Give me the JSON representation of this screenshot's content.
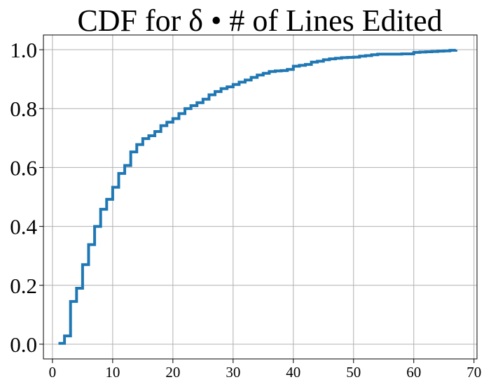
{
  "chart_data": {
    "type": "line",
    "title": "CDF for δ • # of Lines Edited",
    "xlabel": "",
    "ylabel": "",
    "xlim": [
      -1.5,
      70.5
    ],
    "ylim": [
      -0.05,
      1.05
    ],
    "grid": true,
    "x_ticks": [
      0,
      10,
      20,
      30,
      40,
      50,
      60,
      70
    ],
    "y_ticks": [
      0.0,
      0.2,
      0.4,
      0.6,
      0.8,
      1.0
    ],
    "x_tick_labels": [
      "0",
      "10",
      "20",
      "30",
      "40",
      "50",
      "60",
      "70"
    ],
    "y_tick_labels": [
      "0.0",
      "0.2",
      "0.4",
      "0.6",
      "0.8",
      "1.0"
    ],
    "series": [
      {
        "color": "#1f77b4",
        "x": [
          1,
          2,
          3,
          4,
          5,
          6,
          7,
          8,
          9,
          10,
          11,
          12,
          13,
          14,
          15,
          16,
          17,
          18,
          19,
          20,
          21,
          22,
          23,
          24,
          25,
          26,
          27,
          28,
          29,
          30,
          31,
          32,
          33,
          34,
          35,
          36,
          37,
          38,
          39,
          40,
          41,
          42,
          43,
          44,
          45,
          46,
          47,
          48,
          49,
          50,
          51,
          52,
          53,
          54,
          55,
          56,
          57,
          58,
          59,
          60,
          61,
          62,
          63,
          64,
          65,
          66,
          67
        ],
        "y": [
          0.003,
          0.028,
          0.145,
          0.19,
          0.27,
          0.338,
          0.4,
          0.458,
          0.492,
          0.533,
          0.58,
          0.607,
          0.653,
          0.678,
          0.698,
          0.708,
          0.722,
          0.742,
          0.754,
          0.766,
          0.783,
          0.8,
          0.81,
          0.82,
          0.832,
          0.847,
          0.858,
          0.868,
          0.874,
          0.882,
          0.89,
          0.897,
          0.906,
          0.914,
          0.92,
          0.926,
          0.928,
          0.929,
          0.933,
          0.944,
          0.947,
          0.95,
          0.958,
          0.961,
          0.966,
          0.969,
          0.971,
          0.973,
          0.974,
          0.975,
          0.978,
          0.98,
          0.983,
          0.985,
          0.985,
          0.985,
          0.985,
          0.986,
          0.986,
          0.991,
          0.992,
          0.993,
          0.994,
          0.995,
          0.996,
          0.998,
          1.0
        ]
      }
    ]
  }
}
